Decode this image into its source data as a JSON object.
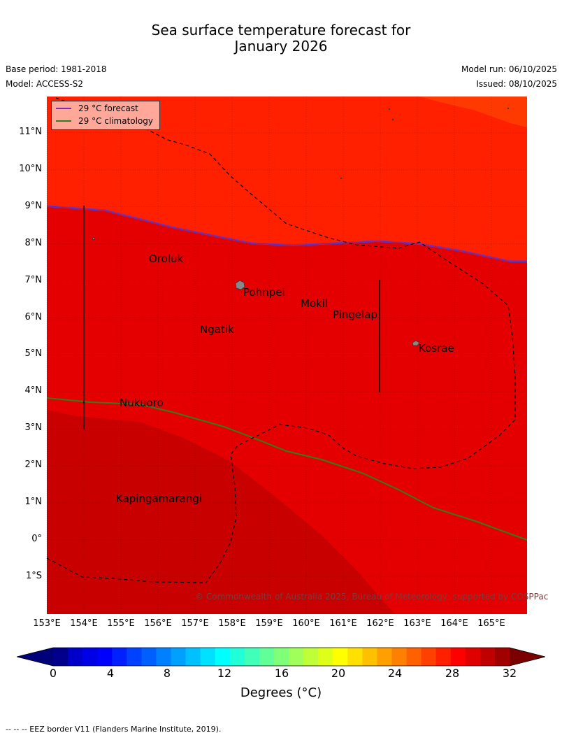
{
  "title": {
    "line1": "Sea surface temperature forecast for",
    "line2": "January 2026"
  },
  "meta": {
    "base_period": "Base period: 1981-2018",
    "model": "Model: ACCESS-S2",
    "model_run": "Model run: 06/10/2025",
    "issued": "Issued: 08/10/2025"
  },
  "legend": {
    "forecast_label": "29 °C  forecast",
    "climatology_label": "29 °C  climatology",
    "forecast_color": "#7a2fb8",
    "climatology_color": "#2f7d1e"
  },
  "lat_labels": [
    "11°N",
    "10°N",
    "9°N",
    "8°N",
    "7°N",
    "6°N",
    "5°N",
    "4°N",
    "3°N",
    "2°N",
    "1°N",
    "0°",
    "1°S"
  ],
  "lon_labels": [
    "153°E",
    "154°E",
    "155°E",
    "156°E",
    "157°E",
    "158°E",
    "159°E",
    "160°E",
    "161°E",
    "162°E",
    "163°E",
    "164°E",
    "165°E"
  ],
  "places": {
    "oroluk": "Oroluk",
    "pohnpei": "Pohnpei",
    "mokil": "Mokil",
    "pingelap": "Pingelap",
    "ngatik": "Ngatik",
    "kosrae": "Kosrae",
    "nukuoro": "Nukuoro",
    "kapingamarangi": "Kapingamarangi"
  },
  "copyright": "© Commonwealth of Australia 2025, Bureau of Meteorology, supported by COSPPac",
  "colorbar": {
    "ticks": [
      "0",
      "4",
      "8",
      "12",
      "16",
      "20",
      "24",
      "28",
      "32"
    ],
    "label": "Degrees (°C)",
    "colors": [
      "#00008c",
      "#0000c8",
      "#0000e6",
      "#0000ff",
      "#0020ff",
      "#0040ff",
      "#0060ff",
      "#0080ff",
      "#00a0ff",
      "#00c0ff",
      "#00e0ff",
      "#00ffff",
      "#20ffd8",
      "#40ffb8",
      "#60ff98",
      "#80ff78",
      "#a0ff58",
      "#c0ff38",
      "#e0ff18",
      "#ffff00",
      "#ffe000",
      "#ffc000",
      "#ffa000",
      "#ff8000",
      "#ff6000",
      "#ff4000",
      "#ff2000",
      "#ff0000",
      "#e00000",
      "#c00000",
      "#a00000"
    ],
    "under_color": "#000078",
    "over_color": "#7a0000"
  },
  "fields": {
    "warm_color": "#ff2000",
    "mid_color": "#e50000",
    "hot_color": "#c80000",
    "ne_corner_color": "#ff3a00"
  },
  "footnote": "--  --  -- EEZ border V11 (Flanders Marine Institute, 2019)."
}
